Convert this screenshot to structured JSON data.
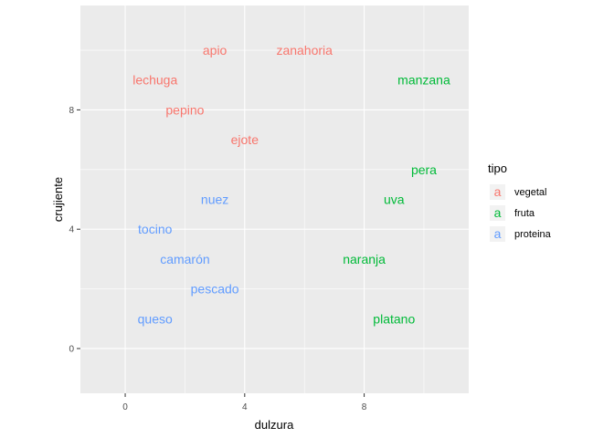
{
  "chart_data": {
    "type": "scatter",
    "title": "",
    "xlabel": "dulzura",
    "ylabel": "crujiente",
    "xlim": [
      -1.5,
      11.5
    ],
    "ylim": [
      -1.5,
      11.5
    ],
    "x_ticks": [
      0,
      4,
      8
    ],
    "y_ticks": [
      0,
      4,
      8
    ],
    "grid": true,
    "legend": {
      "title": "tipo",
      "placement": "right",
      "key_glyph": "a",
      "entries": [
        {
          "name": "vegetal",
          "color": "#F8766D"
        },
        {
          "name": "fruta",
          "color": "#00BA38"
        },
        {
          "name": "proteina",
          "color": "#619CFF"
        }
      ]
    },
    "points": [
      {
        "label": "apio",
        "x": 3,
        "y": 10,
        "tipo": "vegetal"
      },
      {
        "label": "zanahoria",
        "x": 6,
        "y": 10,
        "tipo": "vegetal"
      },
      {
        "label": "lechuga",
        "x": 1,
        "y": 9,
        "tipo": "vegetal"
      },
      {
        "label": "pepino",
        "x": 2,
        "y": 8,
        "tipo": "vegetal"
      },
      {
        "label": "ejote",
        "x": 4,
        "y": 7,
        "tipo": "vegetal"
      },
      {
        "label": "manzana",
        "x": 10,
        "y": 9,
        "tipo": "fruta"
      },
      {
        "label": "pera",
        "x": 10,
        "y": 6,
        "tipo": "fruta"
      },
      {
        "label": "uva",
        "x": 9,
        "y": 5,
        "tipo": "fruta"
      },
      {
        "label": "naranja",
        "x": 8,
        "y": 3,
        "tipo": "fruta"
      },
      {
        "label": "platano",
        "x": 9,
        "y": 1,
        "tipo": "fruta"
      },
      {
        "label": "nuez",
        "x": 3,
        "y": 5,
        "tipo": "proteina"
      },
      {
        "label": "tocino",
        "x": 1,
        "y": 4,
        "tipo": "proteina"
      },
      {
        "label": "camarón",
        "x": 2,
        "y": 3,
        "tipo": "proteina"
      },
      {
        "label": "pescado",
        "x": 3,
        "y": 2,
        "tipo": "proteina"
      },
      {
        "label": "queso",
        "x": 1,
        "y": 1,
        "tipo": "proteina"
      }
    ]
  }
}
